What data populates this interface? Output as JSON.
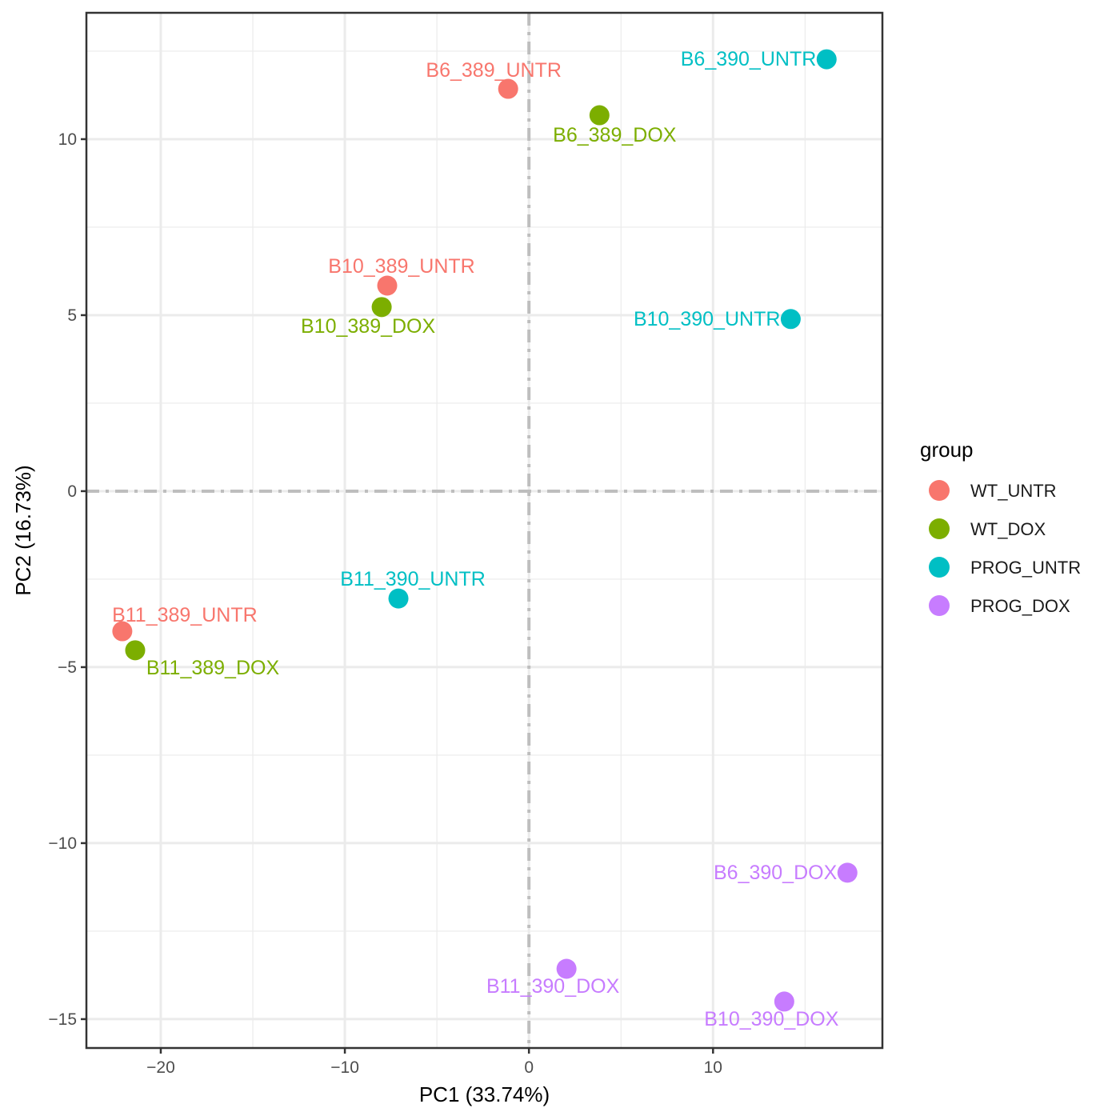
{
  "chart_data": {
    "type": "scatter",
    "title": "",
    "xlabel": "PC1 (33.74%)",
    "ylabel": "PC2 (16.73%)",
    "xlim": [
      -24.04,
      19.2
    ],
    "ylim": [
      -15.82,
      13.59
    ],
    "x_ticks": [
      -20,
      -10,
      0,
      10
    ],
    "x_tick_labels": [
      "−20",
      "−10",
      "0",
      "10"
    ],
    "y_ticks": [
      -15,
      -10,
      -5,
      0,
      5,
      10
    ],
    "y_tick_labels": [
      "−15",
      "−10",
      "−5",
      "0",
      "5",
      "10"
    ],
    "x_minor_ticks": [
      -15,
      -5,
      5,
      15
    ],
    "y_minor_ticks": [
      -12.5,
      -7.5,
      -2.5,
      2.5,
      7.5,
      12.5
    ],
    "grid": true,
    "reference_lines": {
      "x": 0,
      "y": 0,
      "style": "dotdash",
      "color": "#BEBEBE"
    },
    "legend": {
      "title": "group",
      "position": "right",
      "entries": [
        {
          "label": "WT_UNTR",
          "color": "#F8766D"
        },
        {
          "label": "WT_DOX",
          "color": "#7CAE00"
        },
        {
          "label": "PROG_UNTR",
          "color": "#00BFC4"
        },
        {
          "label": "PROG_DOX",
          "color": "#C77CFF"
        }
      ]
    },
    "points": [
      {
        "label": "B6_389_UNTR",
        "group": "WT_UNTR",
        "x": -1.13,
        "y": 11.43
      },
      {
        "label": "B6_389_DOX",
        "group": "WT_DOX",
        "x": 3.83,
        "y": 10.68
      },
      {
        "label": "B6_390_UNTR",
        "group": "PROG_UNTR",
        "x": 16.17,
        "y": 12.27
      },
      {
        "label": "B10_389_UNTR",
        "group": "WT_UNTR",
        "x": -7.7,
        "y": 5.84
      },
      {
        "label": "B10_389_DOX",
        "group": "WT_DOX",
        "x": -8.0,
        "y": 5.23
      },
      {
        "label": "B10_390_UNTR",
        "group": "PROG_UNTR",
        "x": 14.22,
        "y": 4.89
      },
      {
        "label": "B11_390_UNTR",
        "group": "PROG_UNTR",
        "x": -7.09,
        "y": -3.05
      },
      {
        "label": "B11_389_UNTR",
        "group": "WT_UNTR",
        "x": -22.09,
        "y": -3.98
      },
      {
        "label": "B11_389_DOX",
        "group": "WT_DOX",
        "x": -21.39,
        "y": -4.52
      },
      {
        "label": "B6_390_DOX",
        "group": "PROG_DOX",
        "x": 17.3,
        "y": -10.84
      },
      {
        "label": "B11_390_DOX",
        "group": "PROG_DOX",
        "x": 2.04,
        "y": -13.57
      },
      {
        "label": "B10_390_DOX",
        "group": "PROG_DOX",
        "x": 13.87,
        "y": -14.5
      }
    ]
  }
}
